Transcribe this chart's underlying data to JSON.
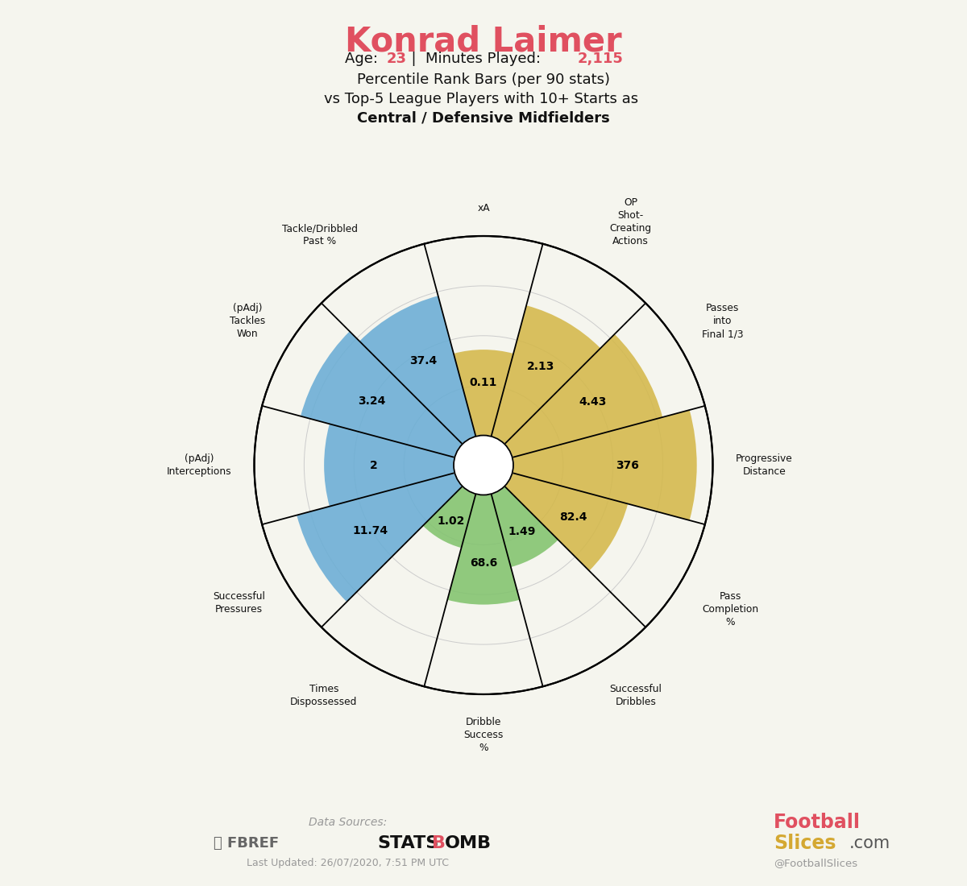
{
  "title": "Konrad Laimer",
  "subtitle_age": "23",
  "subtitle_minutes": "2,115",
  "categories": [
    "xA",
    "OP\nShot-\nCreating\nActions",
    "Passes\ninto\nFinal 1/3",
    "Progressive\nDistance",
    "Pass\nCompletion\n%",
    "Successful\nDribbles",
    "Dribble\nSuccess\n%",
    "Times\nDispossessed",
    "Successful\nPressures",
    "(pAdj)\nInterceptions",
    "(pAdj)\nTackles\nWon",
    "Tackle/Dribbled\nPast %"
  ],
  "values": [
    0.11,
    2.13,
    4.43,
    376,
    82.4,
    1.49,
    68.6,
    1.02,
    11.74,
    2.0,
    3.24,
    37.4
  ],
  "percentiles": [
    43,
    68,
    78,
    92,
    60,
    38,
    55,
    28,
    82,
    65,
    80,
    73
  ],
  "colors": [
    "#d4b84a",
    "#d4b84a",
    "#d4b84a",
    "#d4b84a",
    "#d4b84a",
    "#82c36e",
    "#82c36e",
    "#82c36e",
    "#6aadd5",
    "#6aadd5",
    "#6aadd5",
    "#6aadd5"
  ],
  "background_color": "#f5f5ee",
  "title_color": "#e05060",
  "highlight_color": "#e05060",
  "text_color": "#111111",
  "grid_color": "#cccccc",
  "last_updated": "Last Updated: 26/07/2020, 7:51 PM UTC"
}
